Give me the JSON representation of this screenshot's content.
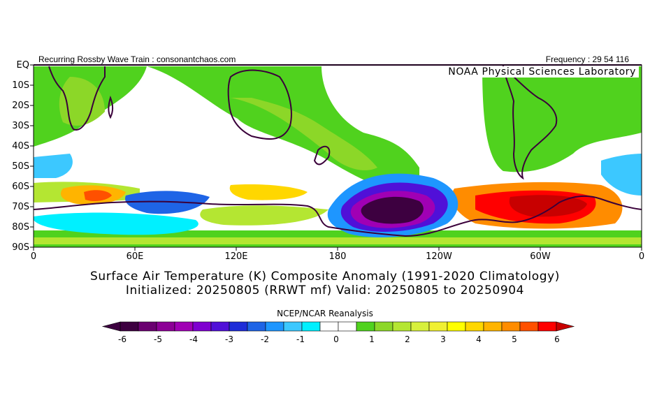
{
  "header": {
    "left_text": "Recurring Rossby Wave Train : consonantchaos.com",
    "right_text": "Frequency : 29 54 116"
  },
  "credit": "NOAA Physical Sciences Laboratory",
  "title": {
    "line1": "Surface Air Temperature (K) Composite Anomaly (1991-2020 Climatology)",
    "line2": "Initialized: 20250805 (RRWT mf) Valid: 20250805 to 20250904"
  },
  "axes": {
    "lat_labels": [
      "EQ",
      "10S",
      "20S",
      "30S",
      "40S",
      "50S",
      "60S",
      "70S",
      "80S",
      "90S"
    ],
    "lon_labels": [
      "0",
      "60E",
      "120E",
      "180",
      "120W",
      "60W",
      "0"
    ]
  },
  "colorbar": {
    "title": "NCEP/NCAR Reanalysis",
    "labels": [
      "-6",
      "-5",
      "-4",
      "-3",
      "-2",
      "-1",
      "0",
      "1",
      "2",
      "3",
      "4",
      "5",
      "6"
    ],
    "colors": [
      "#3d0040",
      "#6a0070",
      "#8c0096",
      "#a000b4",
      "#7f00d0",
      "#5010d8",
      "#1e2cd8",
      "#1e64e6",
      "#1e96ff",
      "#3cc8ff",
      "#00f0ff",
      "#ffffff",
      "#ffffff",
      "#50d21e",
      "#8cd728",
      "#b4e632",
      "#d7f03c",
      "#f0f032",
      "#ffff00",
      "#ffd700",
      "#ffb400",
      "#ff8c00",
      "#ff5000",
      "#ff0000"
    ],
    "low_arrow_color": "#3d0040",
    "high_arrow_color": "#c80000"
  },
  "colors": {
    "border": "#000000",
    "continent_outline": "#3a003a",
    "equator_line": "#3a003a"
  }
}
